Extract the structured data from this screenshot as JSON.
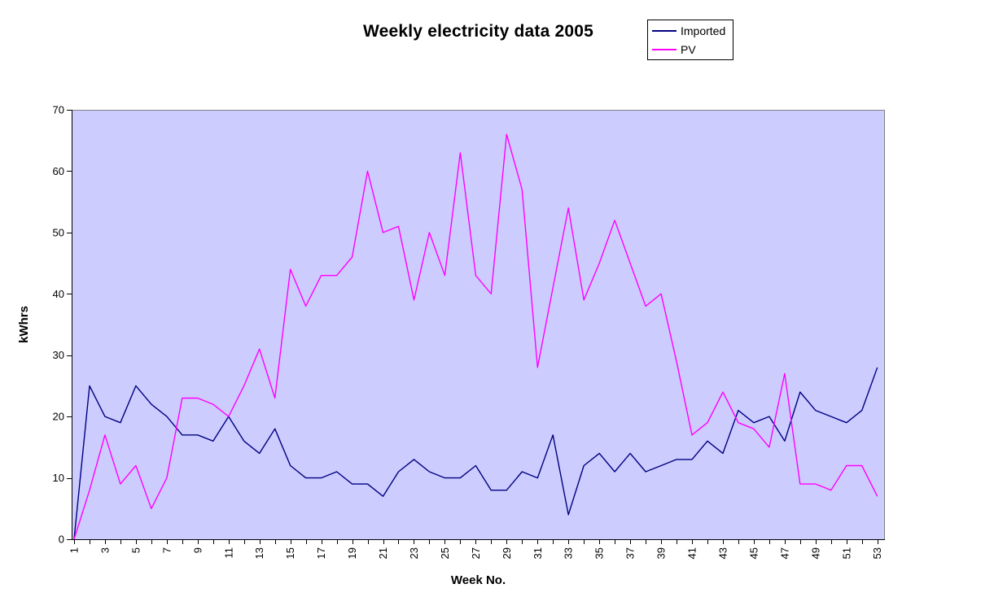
{
  "chart_data": {
    "type": "line",
    "title": "Weekly electricity data 2005",
    "xlabel": "Week No.",
    "ylabel": "kWhrs",
    "x": [
      1,
      2,
      3,
      4,
      5,
      6,
      7,
      8,
      9,
      10,
      11,
      12,
      13,
      14,
      15,
      16,
      17,
      18,
      19,
      20,
      21,
      22,
      23,
      24,
      25,
      26,
      27,
      28,
      29,
      30,
      31,
      32,
      33,
      34,
      35,
      36,
      37,
      38,
      39,
      40,
      41,
      42,
      43,
      44,
      45,
      46,
      47,
      48,
      49,
      50,
      51,
      52,
      53
    ],
    "x_tick_labels": [
      1,
      3,
      5,
      7,
      9,
      11,
      13,
      15,
      17,
      19,
      21,
      23,
      25,
      27,
      29,
      31,
      33,
      35,
      37,
      39,
      41,
      43,
      45,
      47,
      49,
      51,
      53
    ],
    "y_ticks": [
      0,
      10,
      20,
      30,
      40,
      50,
      60,
      70
    ],
    "ylim": [
      0,
      70
    ],
    "grid": false,
    "legend_position": "top-right",
    "plot_background": "#ccccff",
    "plot_border_color": "#808080",
    "axis_color": "#000000",
    "series": [
      {
        "name": "Imported",
        "color": "#000080",
        "values": [
          0,
          25,
          20,
          19,
          25,
          22,
          20,
          17,
          17,
          16,
          20,
          16,
          14,
          18,
          12,
          10,
          10,
          11,
          9,
          9,
          7,
          11,
          13,
          11,
          10,
          10,
          12,
          8,
          8,
          11,
          10,
          17,
          4,
          12,
          14,
          11,
          14,
          11,
          12,
          13,
          13,
          16,
          14,
          21,
          19,
          20,
          16,
          24,
          21,
          20,
          19,
          21,
          28
        ]
      },
      {
        "name": "PV",
        "color": "#ff00ff",
        "values": [
          0,
          8,
          17,
          9,
          12,
          5,
          10,
          23,
          23,
          22,
          20,
          25,
          31,
          23,
          44,
          38,
          43,
          43,
          46,
          60,
          50,
          51,
          39,
          50,
          43,
          63,
          43,
          40,
          66,
          57,
          28,
          41,
          54,
          39,
          45,
          52,
          45,
          38,
          40,
          29,
          17,
          19,
          24,
          19,
          18,
          15,
          27,
          9,
          9,
          8,
          12,
          12,
          7
        ]
      }
    ]
  }
}
